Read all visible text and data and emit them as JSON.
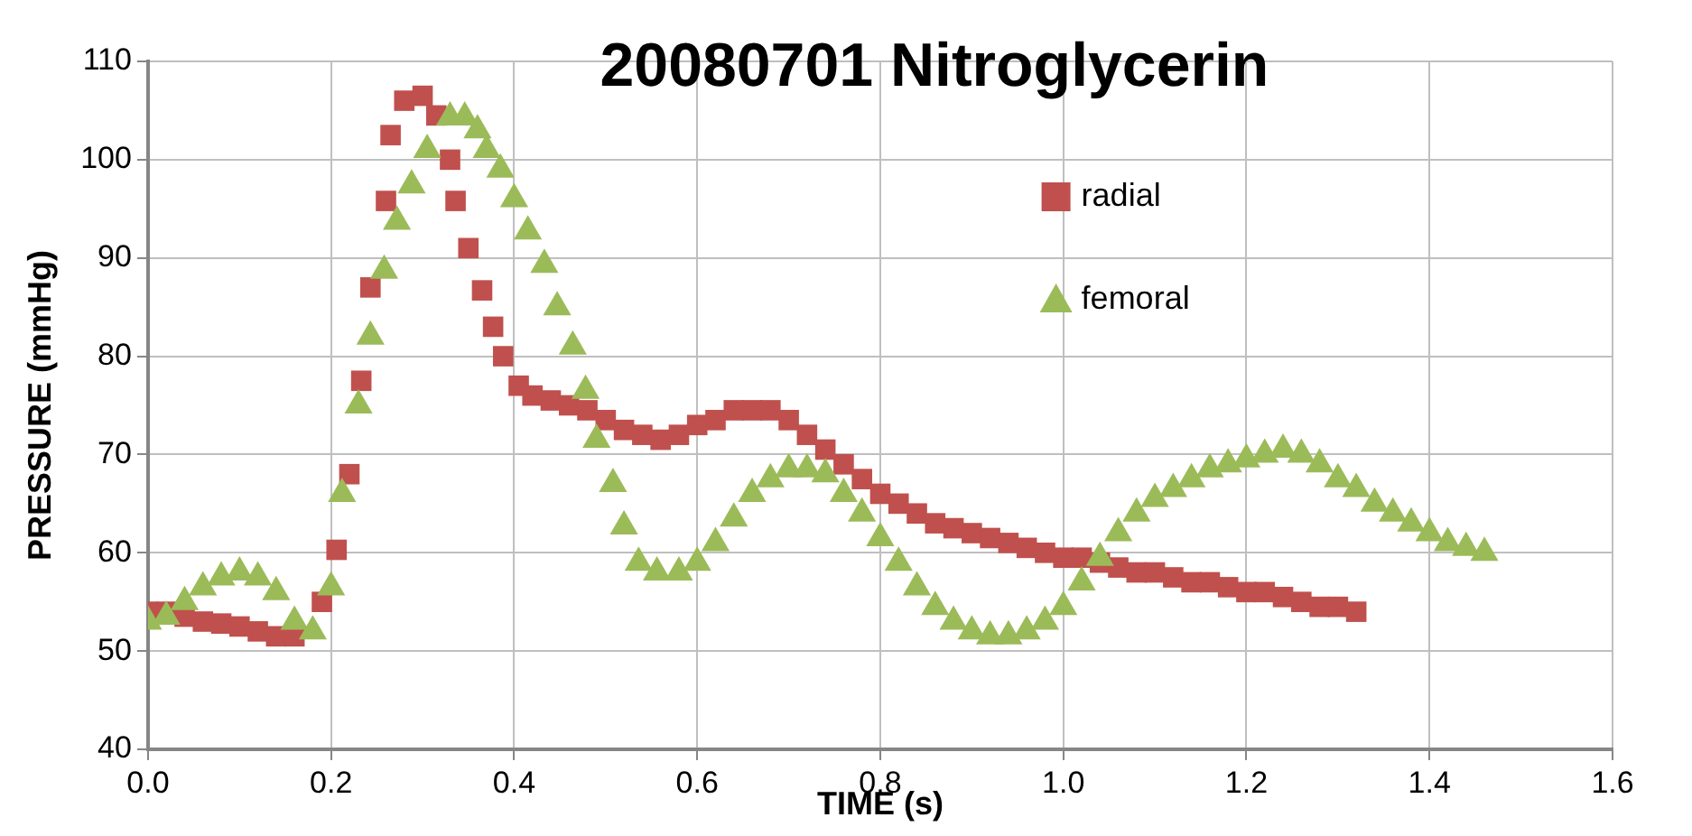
{
  "chart_data": {
    "type": "scatter",
    "title": "20080701 Nitroglycerin",
    "xlabel": "TIME (s)",
    "ylabel": "PRESSURE (mmHg)",
    "xlim": [
      0,
      1.6
    ],
    "xticks": [
      {
        "value": 0,
        "label": "0.0"
      },
      {
        "value": 0.2,
        "label": "0.2"
      },
      {
        "value": 0.4,
        "label": "0.4"
      },
      {
        "value": 0.6,
        "label": "0.6"
      },
      {
        "value": 0.8,
        "label": "0.8"
      },
      {
        "value": 1,
        "label": "1.0"
      },
      {
        "value": 1.2,
        "label": "1.2"
      },
      {
        "value": 1.4,
        "label": "1.4"
      },
      {
        "value": 1.6,
        "label": "1.6"
      }
    ],
    "ylim": [
      40,
      110
    ],
    "yticks": [
      40,
      50,
      60,
      70,
      80,
      90,
      100,
      110
    ],
    "grid": true,
    "legend": "top right",
    "series": [
      {
        "name": "radial",
        "color": "#c0504d",
        "marker": "square",
        "x": [
          0,
          0.02,
          0.04,
          0.06,
          0.08,
          0.1,
          0.12,
          0.14,
          0.16,
          0.19,
          0.206,
          0.22,
          0.233,
          0.243,
          0.26,
          0.265,
          0.28,
          0.3,
          0.315,
          0.33,
          0.336,
          0.35,
          0.365,
          0.377,
          0.388,
          0.405,
          0.42,
          0.44,
          0.46,
          0.48,
          0.5,
          0.52,
          0.54,
          0.56,
          0.58,
          0.6,
          0.62,
          0.64,
          0.66,
          0.68,
          0.7,
          0.72,
          0.74,
          0.76,
          0.78,
          0.8,
          0.82,
          0.84,
          0.86,
          0.88,
          0.9,
          0.92,
          0.94,
          0.96,
          0.98,
          1,
          1.02,
          1.04,
          1.06,
          1.08,
          1.1,
          1.12,
          1.14,
          1.16,
          1.18,
          1.2,
          1.22,
          1.24,
          1.26,
          1.28,
          1.3,
          1.32
        ],
        "values": [
          54,
          54,
          53.5,
          53,
          52.8,
          52.5,
          52,
          51.5,
          51.5,
          55,
          60.3,
          68,
          77.5,
          87,
          95.8,
          102.5,
          106,
          106.5,
          104.5,
          100,
          95.8,
          91,
          86.7,
          83,
          80,
          77,
          76,
          75.5,
          75,
          74.5,
          73.5,
          72.5,
          72,
          71.5,
          72,
          73,
          73.5,
          74.5,
          74.5,
          74.5,
          73.5,
          72,
          70.5,
          69,
          67.5,
          66,
          65,
          64,
          63,
          62.5,
          62,
          61.5,
          61,
          60.5,
          60,
          59.5,
          59.5,
          59,
          58.5,
          58,
          58,
          57.5,
          57,
          57,
          56.5,
          56,
          56,
          55.5,
          55,
          54.5,
          54.5,
          54
        ]
      },
      {
        "name": "femoral",
        "color": "#9bbb59",
        "marker": "triangle",
        "x": [
          0,
          0.02,
          0.04,
          0.06,
          0.08,
          0.1,
          0.12,
          0.14,
          0.16,
          0.18,
          0.2,
          0.212,
          0.23,
          0.243,
          0.258,
          0.272,
          0.288,
          0.305,
          0.33,
          0.346,
          0.36,
          0.37,
          0.385,
          0.4,
          0.415,
          0.433,
          0.447,
          0.464,
          0.478,
          0.49,
          0.508,
          0.52,
          0.536,
          0.556,
          0.58,
          0.6,
          0.62,
          0.64,
          0.66,
          0.68,
          0.7,
          0.72,
          0.74,
          0.76,
          0.78,
          0.8,
          0.82,
          0.84,
          0.86,
          0.88,
          0.9,
          0.92,
          0.94,
          0.96,
          0.98,
          1,
          1.02,
          1.04,
          1.06,
          1.08,
          1.1,
          1.12,
          1.14,
          1.16,
          1.18,
          1.2,
          1.22,
          1.24,
          1.26,
          1.28,
          1.3,
          1.32,
          1.34,
          1.36,
          1.38,
          1.4,
          1.42,
          1.44,
          1.46
        ],
        "values": [
          53,
          53.5,
          55,
          56.5,
          57.5,
          58,
          57.5,
          56,
          53,
          52,
          56.5,
          66,
          75,
          82,
          88.7,
          93.7,
          97.4,
          101,
          104.3,
          104.3,
          103,
          101,
          99,
          96,
          92.7,
          89.3,
          85,
          81,
          76.5,
          71.5,
          67,
          62.7,
          59,
          58,
          58,
          59,
          61,
          63.5,
          66,
          67.5,
          68.5,
          68.5,
          68,
          66,
          64,
          61.5,
          59,
          56.5,
          54.5,
          53,
          52,
          51.5,
          51.5,
          52,
          53,
          54.5,
          57,
          59.5,
          62,
          64,
          65.5,
          66.5,
          67.5,
          68.5,
          69,
          69.5,
          70,
          70.5,
          70,
          69,
          67.5,
          66.5,
          65,
          64,
          63,
          62,
          61,
          60.5,
          60
        ]
      }
    ]
  }
}
